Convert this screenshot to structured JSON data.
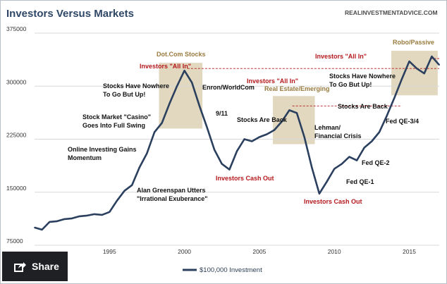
{
  "header": {
    "title": "Investors Versus Markets",
    "source": "REALINVESTMENTADVICE.COM"
  },
  "share": {
    "label": "Share",
    "icon": "share-icon"
  },
  "colors": {
    "line": "#2b3f5e",
    "band": "#dcd1b4",
    "grid": "#d8d8d8",
    "red": "#b5181d",
    "tan": "#9a7b3e"
  },
  "chart_data": {
    "type": "line",
    "title": "Investors Versus Markets",
    "xlabel": "",
    "ylabel": "",
    "xlim": [
      1990,
      2017
    ],
    "ylim": [
      75000,
      375000
    ],
    "yticks": [
      75000,
      150000,
      225000,
      300000,
      375000
    ],
    "xticks": [
      1995,
      2000,
      2005,
      2010,
      2015
    ],
    "grid": "horizontal",
    "legend": "bottom-center",
    "series": [
      {
        "name": "$100,000 Investment",
        "x": [
          1990,
          1990.5,
          1991,
          1991.5,
          1992,
          1992.5,
          1993,
          1993.5,
          1994,
          1994.5,
          1995,
          1995.5,
          1996,
          1996.5,
          1997,
          1997.5,
          1998,
          1998.5,
          1999,
          1999.5,
          2000,
          2000.5,
          2001,
          2001.5,
          2002,
          2002.5,
          2003,
          2003.5,
          2004,
          2004.5,
          2005,
          2005.5,
          2006,
          2006.5,
          2007,
          2007.5,
          2008,
          2008.5,
          2009,
          2009.5,
          2010,
          2010.5,
          2011,
          2011.5,
          2012,
          2012.5,
          2013,
          2013.5,
          2014,
          2014.5,
          2015,
          2015.5,
          2016,
          2016.5,
          2017
        ],
        "values": [
          100000,
          97000,
          108000,
          109000,
          112000,
          113000,
          116000,
          117000,
          119000,
          118000,
          122000,
          138000,
          152000,
          160000,
          185000,
          205000,
          235000,
          248000,
          275000,
          300000,
          322000,
          305000,
          272000,
          242000,
          210000,
          190000,
          182000,
          208000,
          225000,
          222000,
          228000,
          232000,
          238000,
          250000,
          266000,
          262000,
          228000,
          185000,
          148000,
          165000,
          183000,
          190000,
          200000,
          195000,
          213000,
          222000,
          235000,
          258000,
          283000,
          310000,
          335000,
          325000,
          318000,
          342000,
          330000
        ]
      }
    ],
    "bands": [
      {
        "label": "Dot.Com Stocks",
        "x0": 1998.3,
        "x1": 2001.2,
        "y0": 240000,
        "y1": 333000
      },
      {
        "label": "Real Estate/Emerging",
        "x0": 2005.9,
        "x1": 2008.7,
        "y0": 218000,
        "y1": 286000
      },
      {
        "label": "Robo/Passive",
        "x0": 2013.8,
        "x1": 2016.9,
        "y0": 287000,
        "y1": 350000
      }
    ],
    "reference_lines": [
      {
        "label": "Investors \"All In\"",
        "y": 325000,
        "x0": 2000.2,
        "x1": 2017
      },
      {
        "label": "Investors \"All In\"",
        "y": 272000,
        "x0": 2007.2,
        "x1": 2014.5
      },
      {
        "label": "Investors \"All In\"",
        "y": 339000,
        "x0": 2016.4,
        "x1": 2017
      }
    ],
    "annotations": [
      {
        "text": "Dot.Com Stocks",
        "style": "tan"
      },
      {
        "text": "Investors \"All In\"",
        "style": "red"
      },
      {
        "text": "Stocks Have Nowhere",
        "style": "black"
      },
      {
        "text": "To Go But Up!",
        "style": "black"
      },
      {
        "text": "Enron/WorldCom",
        "style": "black"
      },
      {
        "text": "9/11",
        "style": "black"
      },
      {
        "text": "Stock Market \"Casino\"",
        "style": "black"
      },
      {
        "text": "Goes Into Full Swing",
        "style": "black"
      },
      {
        "text": "Online Investing Gains",
        "style": "black"
      },
      {
        "text": "Momentum",
        "style": "black"
      },
      {
        "text": "Alan Greenspan Utters",
        "style": "black"
      },
      {
        "text": "\"Irrational Exuberance\"",
        "style": "black"
      },
      {
        "text": "Investors Cash Out",
        "style": "red"
      },
      {
        "text": "Real Estate/Emerging",
        "style": "tan"
      },
      {
        "text": "Investors \"All In\"",
        "style": "red"
      },
      {
        "text": "Stocks Are Back",
        "style": "black"
      },
      {
        "text": "Lehman/",
        "style": "black"
      },
      {
        "text": "Financial Crisis",
        "style": "black"
      },
      {
        "text": "Fed QE-1",
        "style": "black"
      },
      {
        "text": "Fed QE-2",
        "style": "black"
      },
      {
        "text": "Investors Cash Out",
        "style": "red"
      },
      {
        "text": "Robo/Passive",
        "style": "tan"
      },
      {
        "text": "Investors \"All In\"",
        "style": "red"
      },
      {
        "text": "Stocks Have Nowhere",
        "style": "black"
      },
      {
        "text": "To Go But Up!",
        "style": "black"
      },
      {
        "text": "Stocks Are Back",
        "style": "black"
      },
      {
        "text": "Fed QE-3/4",
        "style": "black"
      }
    ]
  }
}
